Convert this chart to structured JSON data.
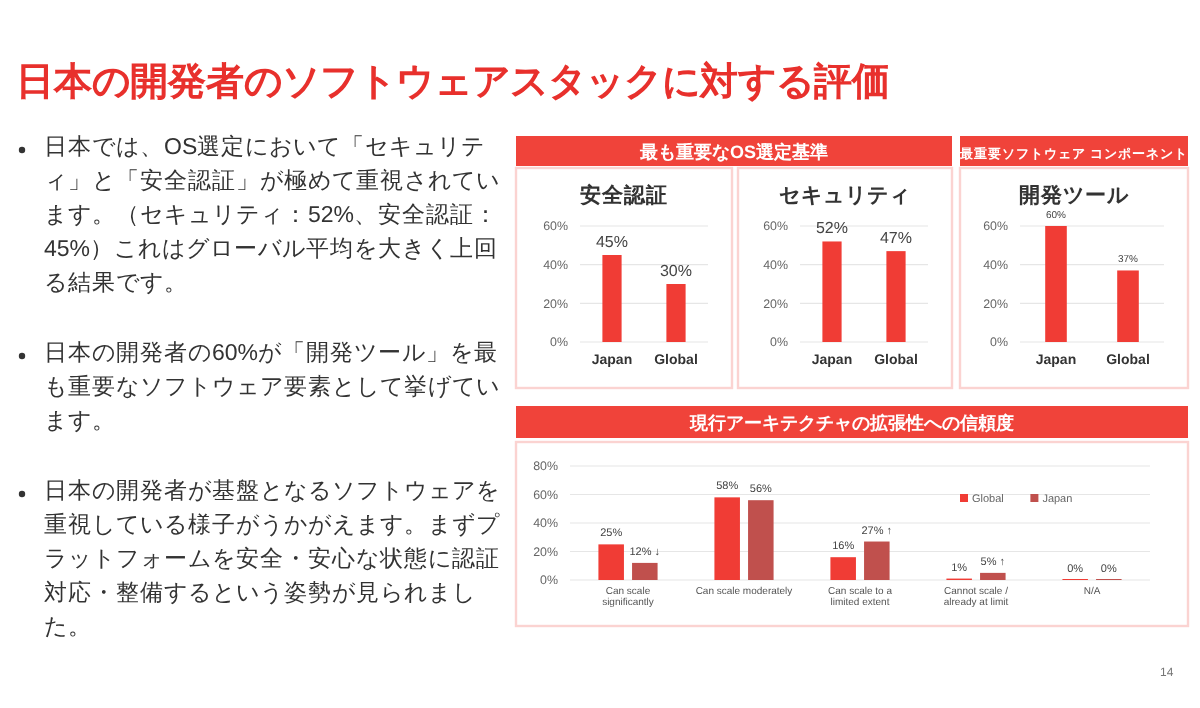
{
  "chart_data": [
    {
      "type": "other",
      "title": "日本の開発者のソフトウェアスタックに対する評価",
      "annotations": [
        "日本では、OS選定において「セキュリティ」と「安全認証」が極めて重視されています。（セキュリティ：52%、安全認証：45%）これはグローバル平均を大きく上回る結果です。",
        "日本の開発者の60%が「開発ツール」を最も重要なソフトウェア要素として挙げています。",
        "日本の開発者が基盤となるソフトウェアを重視している様子がうかがえます。まずプラットフォームを安全・安心な状態に認証対応・整備するという姿勢が見られました。",
        "14"
      ]
    },
    {
      "type": "bar",
      "subtitle": "最も重要なOS選定基準",
      "title": "安全認証",
      "categories": [
        "Japan",
        "Global"
      ],
      "values": [
        45,
        30
      ],
      "value_labels": [
        "45%",
        "30%"
      ],
      "color": "#f03c35",
      "ylim": [
        0,
        60
      ],
      "yticks": [
        {
          "value": 0,
          "label": "0%"
        },
        {
          "value": 20,
          "label": "20%"
        },
        {
          "value": 40,
          "label": "40%"
        },
        {
          "value": 60,
          "label": "60%"
        }
      ],
      "grid": "y"
    },
    {
      "type": "bar",
      "title": "セキュリティ",
      "categories": [
        "Japan",
        "Global"
      ],
      "values": [
        52,
        47
      ],
      "value_labels": [
        "52%",
        "47%"
      ],
      "color": "#f03c35",
      "ylim": [
        0,
        60
      ],
      "yticks": [
        {
          "value": 0,
          "label": "0%"
        },
        {
          "value": 20,
          "label": "20%"
        },
        {
          "value": 40,
          "label": "40%"
        },
        {
          "value": 60,
          "label": "60%"
        }
      ],
      "grid": "y"
    },
    {
      "type": "bar",
      "subtitle": "最重要ソフトウェア コンポーネント",
      "title": "開発ツール",
      "categories": [
        "Japan",
        "Global"
      ],
      "values": [
        60,
        37
      ],
      "value_labels": [
        "60%",
        "37%"
      ],
      "color": "#f03c35",
      "ylim": [
        0,
        60
      ],
      "yticks": [
        {
          "value": 0,
          "label": "0%"
        },
        {
          "value": 20,
          "label": "20%"
        },
        {
          "value": 40,
          "label": "40%"
        },
        {
          "value": 60,
          "label": "60%"
        }
      ],
      "grid": "y"
    },
    {
      "type": "bar",
      "title": "現行アーキテクチャの拡張性への信頼度",
      "categories": [
        "Can scale significantly",
        "Can scale moderately",
        "Can scale to a limited extent",
        "Cannot scale / already at limit",
        "N/A"
      ],
      "series": [
        {
          "name": "Global",
          "color": "#f03c35",
          "values": [
            25,
            58,
            16,
            1,
            0
          ],
          "value_labels": [
            "25%",
            "58%",
            "16%",
            "1%",
            "0%"
          ]
        },
        {
          "name": "Japan",
          "color": "#c0504d",
          "values": [
            12,
            56,
            27,
            5,
            0
          ],
          "value_labels": [
            "12% ↓",
            "56%",
            "27% ↑",
            "5% ↑",
            "0%"
          ]
        }
      ],
      "ylim": [
        0,
        80
      ],
      "yticks": [
        {
          "value": 0,
          "label": "0%"
        },
        {
          "value": 20,
          "label": "20%"
        },
        {
          "value": 40,
          "label": "40%"
        },
        {
          "value": 60,
          "label": "60%"
        },
        {
          "value": 80,
          "label": "80%"
        }
      ],
      "grid": "y",
      "legend": "top right"
    }
  ]
}
